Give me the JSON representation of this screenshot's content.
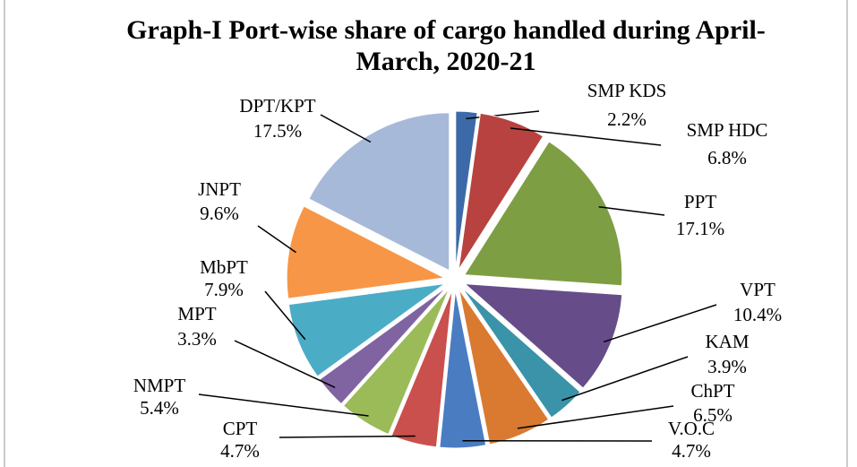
{
  "chart_data": {
    "type": "pie",
    "title": "Graph-I Port-wise share of cargo handled during April-March, 2020-21",
    "categories": [
      "SMP KDS",
      "SMP HDC",
      "PPT",
      "VPT",
      "KAM",
      "ChPT",
      "V.O.C",
      "CPT",
      "NMPT",
      "MPT",
      "MbPT",
      "JNPT",
      "DPT/KPT"
    ],
    "values": [
      2.2,
      6.8,
      17.1,
      10.4,
      3.9,
      6.5,
      4.7,
      4.7,
      5.4,
      3.3,
      7.9,
      9.6,
      17.5
    ],
    "value_labels": [
      "2.2%",
      "6.8%",
      "17.1%",
      "10.4%",
      "3.9%",
      "6.5%",
      "4.7%",
      "4.7%",
      "5.4%",
      "3.3%",
      "7.9%",
      "9.6%",
      "17.5%"
    ],
    "colors": [
      "#3C6AA8",
      "#B84240",
      "#7E9E43",
      "#664D8A",
      "#3A93A8",
      "#D97A30",
      "#4A7CC2",
      "#C9504C",
      "#9BBB59",
      "#8064A2",
      "#4BACC6",
      "#F79646",
      "#A7B9D8"
    ]
  }
}
